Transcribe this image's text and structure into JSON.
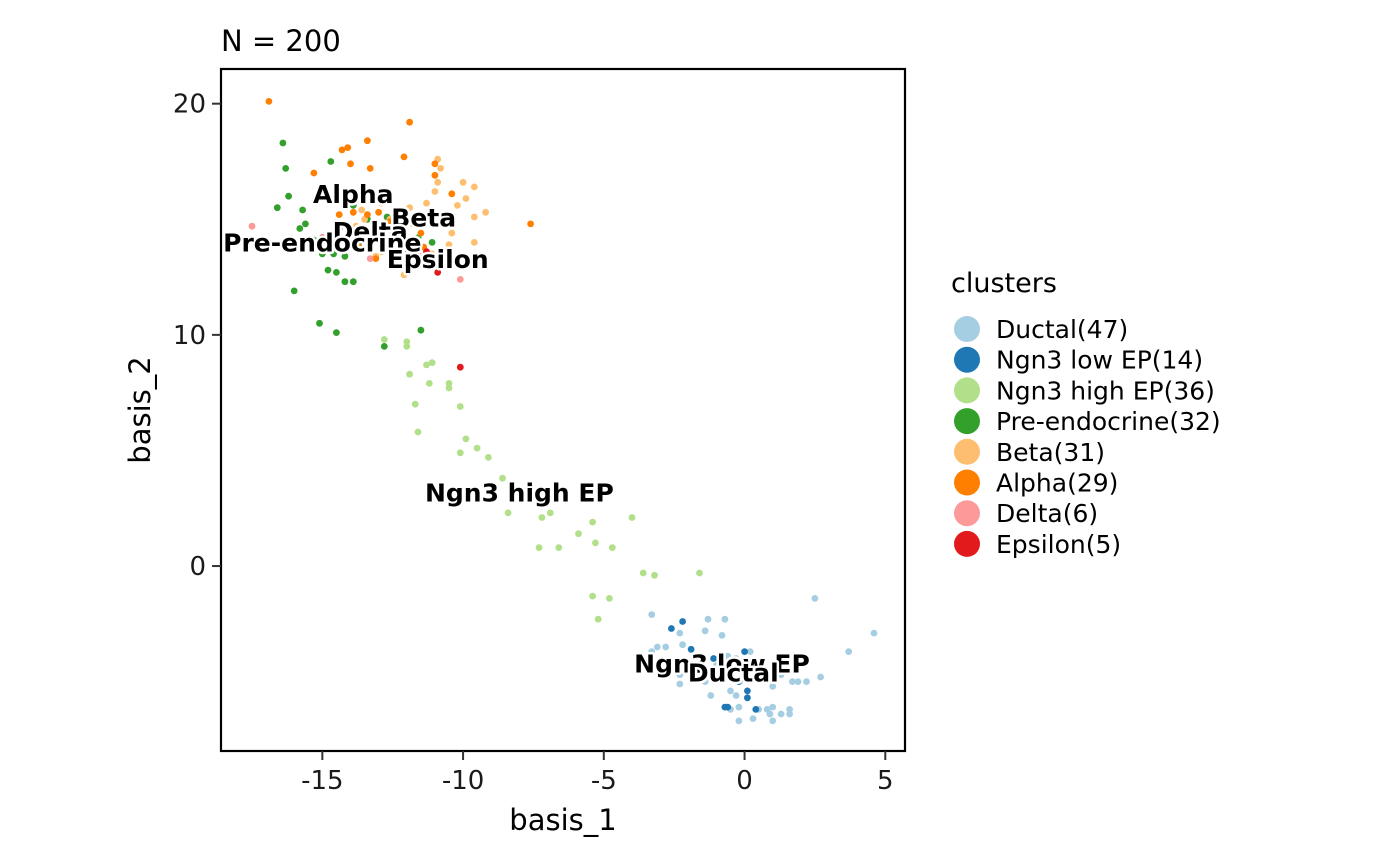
{
  "chart_data": {
    "type": "scatter",
    "title": "N = 200",
    "xlabel": "basis_1",
    "ylabel": "basis_2",
    "xlim": [
      -18.6,
      5.7
    ],
    "ylim": [
      -8.0,
      21.5
    ],
    "xticks": [
      -15,
      -10,
      -5,
      0,
      5
    ],
    "yticks": [
      0,
      10,
      20
    ],
    "grid": false,
    "legend": {
      "title": "clusters",
      "placement": "right",
      "items": [
        {
          "label": "Ductal(47)",
          "color": "#A6CEE3"
        },
        {
          "label": "Ngn3 low EP(14)",
          "color": "#1F78B4"
        },
        {
          "label": "Ngn3 high EP(36)",
          "color": "#B2DF8A"
        },
        {
          "label": "Pre-endocrine(32)",
          "color": "#33A02C"
        },
        {
          "label": "Beta(31)",
          "color": "#FDBF6F"
        },
        {
          "label": "Alpha(29)",
          "color": "#FF7F00"
        },
        {
          "label": "Delta(6)",
          "color": "#FB9A99"
        },
        {
          "label": "Epsilon(5)",
          "color": "#E31A1C"
        }
      ]
    },
    "cluster_labels": [
      {
        "text": "Alpha",
        "x": -13.9,
        "y": 16.0
      },
      {
        "text": "Beta",
        "x": -11.4,
        "y": 15.0
      },
      {
        "text": "Delta",
        "x": -13.3,
        "y": 14.4
      },
      {
        "text": "Pre-endocrine",
        "x": -15.0,
        "y": 13.9
      },
      {
        "text": "Epsilon",
        "x": -10.9,
        "y": 13.2
      },
      {
        "text": "Ngn3 high EP",
        "x": -8.0,
        "y": 3.1
      },
      {
        "text": "Ngn3 low EP",
        "x": -0.8,
        "y": -4.3
      },
      {
        "text": "Ductal",
        "x": -0.4,
        "y": -4.7
      }
    ],
    "series": [
      {
        "name": "Ductal",
        "color": "#A6CEE3",
        "points": [
          [
            2.5,
            -1.4
          ],
          [
            4.6,
            -2.9
          ],
          [
            3.7,
            -3.7
          ],
          [
            2.7,
            -4.8
          ],
          [
            1.9,
            -5.0
          ],
          [
            1.7,
            -5.0
          ],
          [
            1.6,
            -6.2
          ],
          [
            1.6,
            -6.4
          ],
          [
            1.3,
            -6.4
          ],
          [
            1.0,
            -6.7
          ],
          [
            1.0,
            -6.1
          ],
          [
            0.9,
            -6.4
          ],
          [
            0.8,
            -6.2
          ],
          [
            0.5,
            -6.2
          ],
          [
            0.3,
            -6.6
          ],
          [
            -0.2,
            -6.7
          ],
          [
            -0.5,
            -6.2
          ],
          [
            -0.5,
            -5.4
          ],
          [
            -1.2,
            -5.6
          ],
          [
            -0.1,
            -4.9
          ],
          [
            0.2,
            -3.7
          ],
          [
            -0.6,
            -3.9
          ],
          [
            -0.8,
            -3.0
          ],
          [
            -0.7,
            -2.3
          ],
          [
            -1.3,
            -2.3
          ],
          [
            -1.4,
            -2.8
          ],
          [
            -1.8,
            -3.9
          ],
          [
            -2.2,
            -3.4
          ],
          [
            -2.3,
            -2.9
          ],
          [
            -2.8,
            -3.5
          ],
          [
            -3.1,
            -3.5
          ],
          [
            -3.3,
            -3.7
          ],
          [
            -3.3,
            -2.1
          ],
          [
            -2.3,
            -4.7
          ],
          [
            -2.3,
            -5.1
          ],
          [
            -1.0,
            -4.3
          ],
          [
            -0.3,
            -4.0
          ],
          [
            0.1,
            -4.4
          ],
          [
            0.6,
            -4.6
          ],
          [
            1.3,
            -4.7
          ],
          [
            1.4,
            -4.4
          ],
          [
            1.0,
            -5.2
          ],
          [
            -0.3,
            -5.6
          ],
          [
            -1.4,
            -5.0
          ],
          [
            -0.2,
            -6.1
          ],
          [
            2.2,
            -5.0
          ],
          [
            -2.0,
            -4.5
          ]
        ]
      },
      {
        "name": "Ngn3 low EP",
        "color": "#1F78B4",
        "points": [
          [
            -2.2,
            -2.4
          ],
          [
            -2.6,
            -2.7
          ],
          [
            -1.9,
            -3.6
          ],
          [
            -1.1,
            -4.0
          ],
          [
            -0.7,
            -4.3
          ],
          [
            0.0,
            -3.7
          ],
          [
            -0.2,
            -5.0
          ],
          [
            0.1,
            -5.4
          ],
          [
            0.1,
            -5.7
          ],
          [
            0.4,
            -6.2
          ],
          [
            -0.6,
            -6.1
          ],
          [
            -0.7,
            -6.1
          ],
          [
            -0.4,
            -4.9
          ],
          [
            0.8,
            -4.8
          ]
        ]
      },
      {
        "name": "Ngn3 high EP",
        "color": "#B2DF8A",
        "points": [
          [
            -12.8,
            9.8
          ],
          [
            -12.0,
            9.7
          ],
          [
            -12.0,
            9.5
          ],
          [
            -11.3,
            8.7
          ],
          [
            -11.1,
            8.8
          ],
          [
            -11.9,
            8.3
          ],
          [
            -10.5,
            7.9
          ],
          [
            -10.5,
            7.7
          ],
          [
            -11.2,
            7.9
          ],
          [
            -11.7,
            7.0
          ],
          [
            -10.1,
            6.9
          ],
          [
            -11.6,
            5.8
          ],
          [
            -9.9,
            5.5
          ],
          [
            -9.5,
            5.1
          ],
          [
            -10.1,
            4.9
          ],
          [
            -9.1,
            4.7
          ],
          [
            -8.6,
            3.8
          ],
          [
            -8.1,
            3.3
          ],
          [
            -8.4,
            2.3
          ],
          [
            -7.2,
            2.6
          ],
          [
            -6.9,
            2.3
          ],
          [
            -7.2,
            2.1
          ],
          [
            -5.4,
            1.9
          ],
          [
            -4.0,
            2.1
          ],
          [
            -5.9,
            1.4
          ],
          [
            -6.6,
            0.8
          ],
          [
            -7.3,
            0.8
          ],
          [
            -5.3,
            1.0
          ],
          [
            -4.7,
            0.8
          ],
          [
            -3.6,
            -0.3
          ],
          [
            -3.2,
            -0.4
          ],
          [
            -1.6,
            -0.3
          ],
          [
            -5.4,
            -1.3
          ],
          [
            -4.8,
            -1.4
          ],
          [
            -5.2,
            -2.3
          ],
          [
            -12.1,
            13.6
          ]
        ]
      },
      {
        "name": "Pre-endocrine",
        "color": "#33A02C",
        "points": [
          [
            -16.4,
            18.3
          ],
          [
            -16.3,
            17.2
          ],
          [
            -16.2,
            16.0
          ],
          [
            -16.6,
            15.5
          ],
          [
            -15.7,
            15.4
          ],
          [
            -15.6,
            14.8
          ],
          [
            -15.8,
            14.6
          ],
          [
            -14.7,
            17.5
          ],
          [
            -14.6,
            13.5
          ],
          [
            -14.2,
            13.4
          ],
          [
            -14.8,
            12.8
          ],
          [
            -14.5,
            12.7
          ],
          [
            -14.2,
            12.3
          ],
          [
            -13.9,
            12.3
          ],
          [
            -13.9,
            15.6
          ],
          [
            -16.0,
            11.9
          ],
          [
            -15.1,
            10.5
          ],
          [
            -14.5,
            10.1
          ],
          [
            -12.8,
            9.5
          ],
          [
            -11.5,
            10.2
          ],
          [
            -13.7,
            14.0
          ],
          [
            -13.2,
            14.2
          ],
          [
            -12.5,
            14.5
          ],
          [
            -12.7,
            15.1
          ],
          [
            -11.6,
            14.2
          ],
          [
            -11.1,
            14.0
          ],
          [
            -13.4,
            15.0
          ],
          [
            -15.3,
            14.1
          ],
          [
            -14.4,
            14.6
          ],
          [
            -12.0,
            13.5
          ],
          [
            -11.2,
            13.1
          ],
          [
            -15.0,
            13.5
          ]
        ]
      },
      {
        "name": "Beta",
        "color": "#FDBF6F",
        "points": [
          [
            -10.9,
            17.6
          ],
          [
            -10.8,
            17.2
          ],
          [
            -10.9,
            16.6
          ],
          [
            -10.0,
            16.6
          ],
          [
            -9.6,
            16.4
          ],
          [
            -9.9,
            15.9
          ],
          [
            -9.6,
            15.1
          ],
          [
            -9.2,
            15.3
          ],
          [
            -9.6,
            14.0
          ],
          [
            -10.4,
            14.4
          ],
          [
            -11.3,
            15.7
          ],
          [
            -11.8,
            14.8
          ],
          [
            -11.9,
            15.5
          ],
          [
            -12.4,
            13.9
          ],
          [
            -12.1,
            12.6
          ],
          [
            -13.1,
            13.4
          ],
          [
            -12.6,
            14.1
          ],
          [
            -13.5,
            15.0
          ],
          [
            -13.8,
            14.7
          ],
          [
            -12.9,
            15.7
          ],
          [
            -11.1,
            13.5
          ],
          [
            -10.5,
            13.9
          ],
          [
            -11.6,
            15.1
          ],
          [
            -12.2,
            14.3
          ],
          [
            -13.1,
            14.8
          ],
          [
            -10.8,
            14.8
          ],
          [
            -10.2,
            15.6
          ],
          [
            -11.0,
            16.2
          ],
          [
            -12.6,
            15.0
          ],
          [
            -13.6,
            15.4
          ],
          [
            -12.9,
            13.6
          ]
        ]
      },
      {
        "name": "Alpha",
        "color": "#FF7F00",
        "points": [
          [
            -16.9,
            20.1
          ],
          [
            -11.9,
            19.2
          ],
          [
            -13.4,
            18.4
          ],
          [
            -14.1,
            18.1
          ],
          [
            -14.3,
            18.0
          ],
          [
            -15.3,
            17.0
          ],
          [
            -14.0,
            17.4
          ],
          [
            -13.3,
            17.2
          ],
          [
            -12.1,
            17.7
          ],
          [
            -11.0,
            17.4
          ],
          [
            -11.0,
            16.9
          ],
          [
            -10.4,
            16.1
          ],
          [
            -14.9,
            16.1
          ],
          [
            -14.4,
            15.2
          ],
          [
            -13.9,
            15.3
          ],
          [
            -13.4,
            15.2
          ],
          [
            -13.0,
            15.3
          ],
          [
            -12.6,
            14.9
          ],
          [
            -7.6,
            14.8
          ],
          [
            -12.1,
            14.6
          ],
          [
            -11.5,
            14.4
          ],
          [
            -11.4,
            13.8
          ],
          [
            -12.3,
            13.6
          ],
          [
            -13.1,
            13.3
          ],
          [
            -12.7,
            13.9
          ],
          [
            -13.7,
            13.8
          ],
          [
            -11.0,
            14.8
          ],
          [
            -12.3,
            15.4
          ],
          [
            -13.3,
            14.1
          ]
        ]
      },
      {
        "name": "Delta",
        "color": "#FB9A99",
        "points": [
          [
            -17.5,
            14.7
          ],
          [
            -10.1,
            12.4
          ],
          [
            -12.7,
            14.2
          ],
          [
            -13.3,
            13.3
          ],
          [
            -11.6,
            13.5
          ],
          [
            -12.2,
            13.8
          ]
        ]
      },
      {
        "name": "Epsilon",
        "color": "#E31A1C",
        "points": [
          [
            -15.0,
            14.2
          ],
          [
            -10.1,
            8.6
          ],
          [
            -10.9,
            12.7
          ],
          [
            -12.3,
            14.0
          ],
          [
            -11.3,
            13.6
          ]
        ]
      }
    ]
  }
}
